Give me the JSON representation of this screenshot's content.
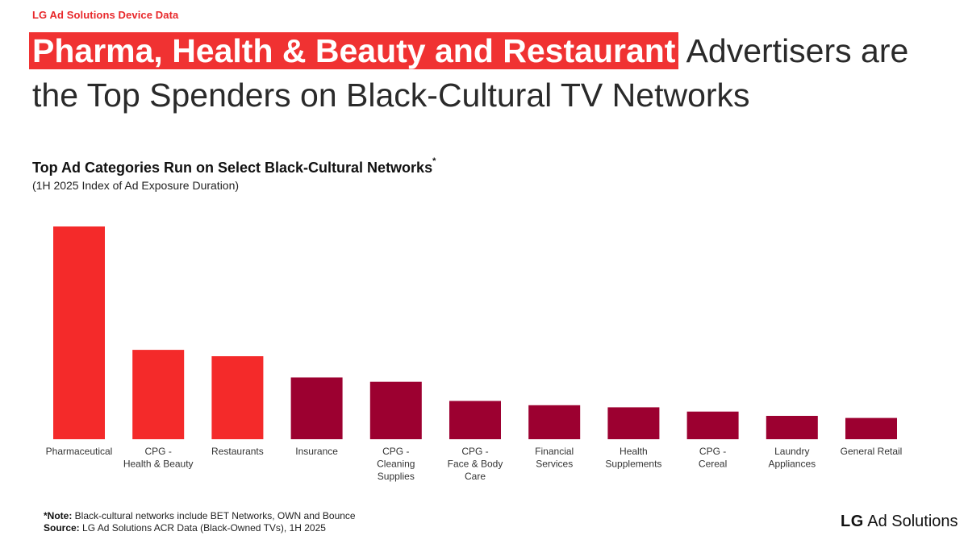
{
  "header": {
    "eyebrow": "LG Ad Solutions Device Data",
    "headline_highlight": "Pharma, Health & Beauty and Restaurant",
    "headline_rest": " Advertisers are the Top Spenders on Black-Cultural TV Networks"
  },
  "chart_data": {
    "type": "bar",
    "title": "Top Ad Categories Run on Select Black-Cultural Networks",
    "title_mark": "*",
    "subtitle": "(1H 2025 Index of Ad Exposure Duration)",
    "xlabel": "",
    "ylabel": "",
    "ylim": [
      0,
      100
    ],
    "grid": false,
    "legend": "none",
    "categories": [
      [
        "Pharmaceutical"
      ],
      [
        "CPG -",
        "Health & Beauty"
      ],
      [
        "Restaurants"
      ],
      [
        "Insurance"
      ],
      [
        "CPG -",
        "Cleaning",
        "Supplies"
      ],
      [
        "CPG -",
        "Face & Body",
        "Care"
      ],
      [
        "Financial",
        "Services"
      ],
      [
        "Health",
        "Supplements"
      ],
      [
        "CPG -",
        "Cereal"
      ],
      [
        "Laundry",
        "Appliances"
      ],
      [
        "General Retail"
      ]
    ],
    "values": [
      100,
      42,
      39,
      29,
      27,
      18,
      16,
      15,
      13,
      11,
      10
    ],
    "bar_colors": [
      "#f42a2a",
      "#f42a2a",
      "#f42a2a",
      "#9c0030",
      "#9c0030",
      "#9c0030",
      "#9c0030",
      "#9c0030",
      "#9c0030",
      "#9c0030",
      "#9c0030"
    ]
  },
  "footer": {
    "note_label": "*Note:",
    "note_text": " Black-cultural networks include BET Networks, OWN and Bounce",
    "source_label": "Source:",
    "source_text": " LG Ad Solutions ACR Data (Black-Owned TVs), 1H 2025",
    "brand_lg": "LG",
    "brand_rest": " Ad Solutions"
  }
}
